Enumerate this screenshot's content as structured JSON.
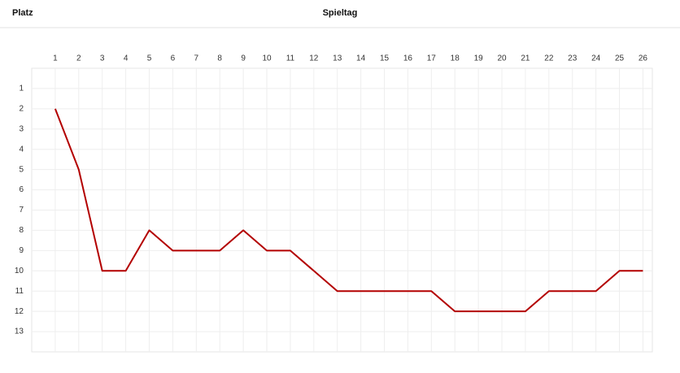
{
  "chart_data": {
    "type": "line",
    "y_label": "Platz",
    "x_label": "Spieltag",
    "x": [
      1,
      2,
      3,
      4,
      5,
      6,
      7,
      8,
      9,
      10,
      11,
      12,
      13,
      14,
      15,
      16,
      17,
      18,
      19,
      20,
      21,
      22,
      23,
      24,
      25,
      26
    ],
    "values": [
      2,
      5,
      10,
      10,
      8,
      9,
      9,
      9,
      8,
      9,
      9,
      10,
      11,
      11,
      11,
      11,
      11,
      12,
      12,
      12,
      12,
      11,
      11,
      11,
      10,
      10
    ],
    "color": "#b30000",
    "xlim": [
      0,
      26.4
    ],
    "xticks": [
      1,
      2,
      3,
      4,
      5,
      6,
      7,
      8,
      9,
      10,
      11,
      12,
      13,
      14,
      15,
      16,
      17,
      18,
      19,
      20,
      21,
      22,
      23,
      24,
      25,
      26
    ],
    "ylim": [
      14,
      0
    ],
    "yticks": [
      1,
      2,
      3,
      4,
      5,
      6,
      7,
      8,
      9,
      10,
      11,
      12,
      13
    ],
    "grid": true
  }
}
